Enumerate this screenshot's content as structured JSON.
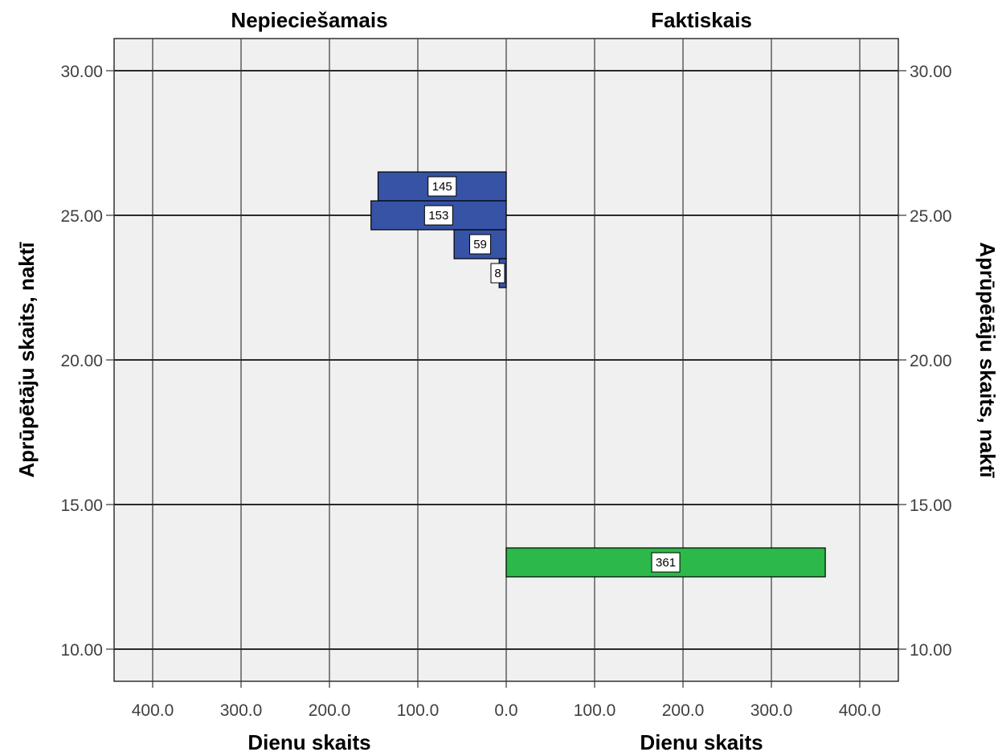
{
  "chart_data": {
    "type": "bar",
    "orientation": "horizontal",
    "layout": "back-to-back population pyramid",
    "panels": [
      {
        "title": "Nepieciešamais",
        "xlabel": "Dienu skaits",
        "direction": "left",
        "color": "#3653a5",
        "bars": [
          {
            "y": 26,
            "value": 145,
            "label": "145"
          },
          {
            "y": 25,
            "value": 153,
            "label": "153"
          },
          {
            "y": 24,
            "value": 59,
            "label": "59"
          },
          {
            "y": 23,
            "value": 8,
            "label": "8"
          }
        ]
      },
      {
        "title": "Faktiskais",
        "xlabel": "Dienu skaits",
        "direction": "right",
        "color": "#2db84a",
        "bars": [
          {
            "y": 13,
            "value": 361,
            "label": "361"
          }
        ]
      }
    ],
    "ylabel": "Aprūpētāju skaits, naktī",
    "ylim": [
      8.9,
      31.1
    ],
    "xlim": [
      0,
      445
    ],
    "x_ticks": [
      0,
      100,
      200,
      300,
      400
    ],
    "x_tick_labels": [
      "0.0",
      "100.0",
      "200.0",
      "300.0",
      "400.0"
    ],
    "y_ticks": [
      10,
      15,
      20,
      25,
      30
    ],
    "y_tick_labels": [
      "10.00",
      "15.00",
      "20.00",
      "25.00",
      "30.00"
    ],
    "grid": true,
    "background": "#f0f0f0",
    "grid_color": "#000000"
  }
}
